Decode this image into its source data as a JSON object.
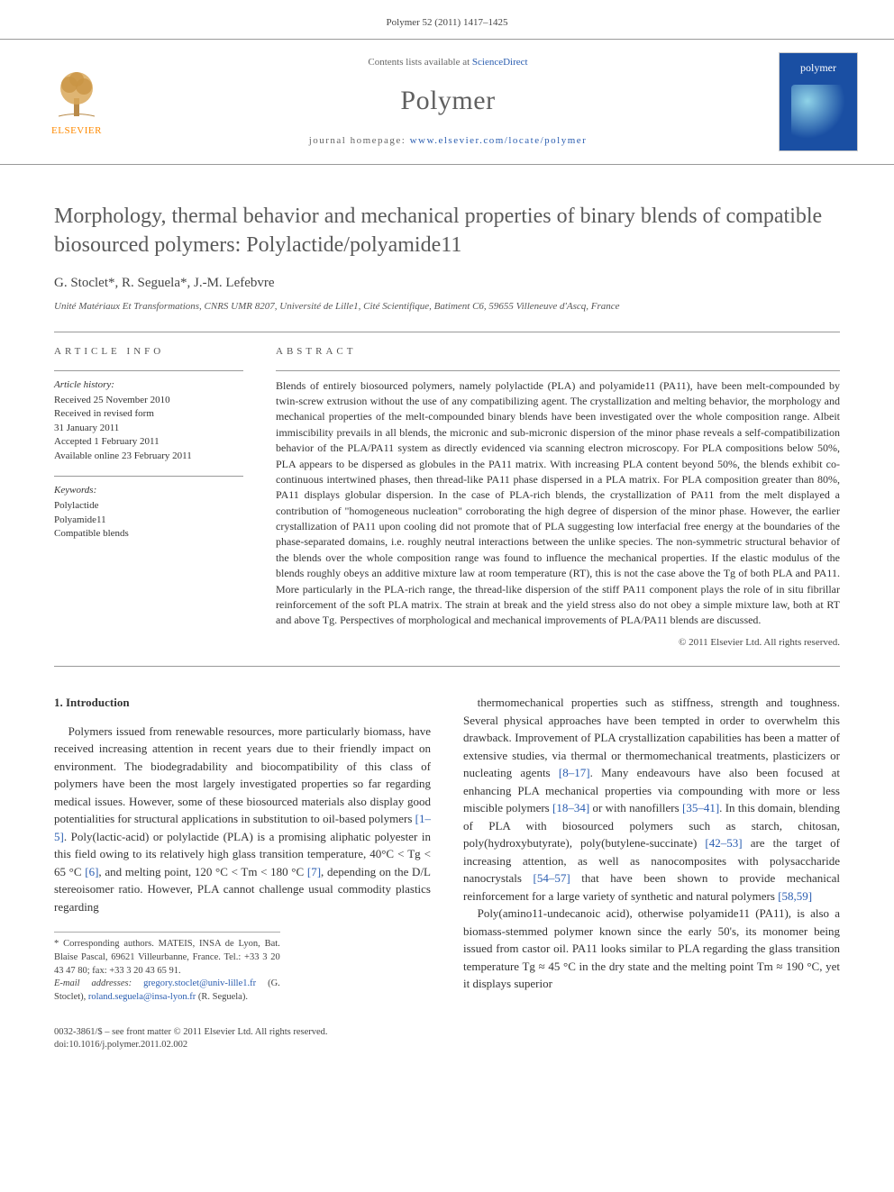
{
  "citation": "Polymer 52 (2011) 1417–1425",
  "masthead": {
    "publisher_label": "ELSEVIER",
    "contents_prefix": "Contents lists available at ",
    "contents_link": "ScienceDirect",
    "journal": "Polymer",
    "homepage_prefix": "journal homepage: ",
    "homepage_url": "www.elsevier.com/locate/polymer",
    "cover_title": "polymer"
  },
  "article": {
    "title": "Morphology, thermal behavior and mechanical properties of binary blends of compatible biosourced polymers: Polylactide/polyamide11",
    "authors": "G. Stoclet*, R. Seguela*, J.-M. Lefebvre",
    "affiliation": "Unité Matériaux Et Transformations, CNRS UMR 8207, Université de Lille1, Cité Scientifique, Batiment C6, 59655 Villeneuve d'Ascq, France"
  },
  "info": {
    "heading": "ARTICLE INFO",
    "history_label": "Article history:",
    "history_lines": "Received 25 November 2010\nReceived in revised form\n31 January 2011\nAccepted 1 February 2011\nAvailable online 23 February 2011",
    "keywords_label": "Keywords:",
    "keywords_lines": "Polylactide\nPolyamide11\nCompatible blends"
  },
  "abstract": {
    "heading": "ABSTRACT",
    "text": "Blends of entirely biosourced polymers, namely polylactide (PLA) and polyamide11 (PA11), have been melt-compounded by twin-screw extrusion without the use of any compatibilizing agent. The crystallization and melting behavior, the morphology and mechanical properties of the melt-compounded binary blends have been investigated over the whole composition range. Albeit immiscibility prevails in all blends, the micronic and sub-micronic dispersion of the minor phase reveals a self-compatibilization behavior of the PLA/PA11 system as directly evidenced via scanning electron microscopy. For PLA compositions below 50%, PLA appears to be dispersed as globules in the PA11 matrix. With increasing PLA content beyond 50%, the blends exhibit co-continuous intertwined phases, then thread-like PA11 phase dispersed in a PLA matrix. For PLA composition greater than 80%, PA11 displays globular dispersion. In the case of PLA-rich blends, the crystallization of PA11 from the melt displayed a contribution of \"homogeneous nucleation\" corroborating the high degree of dispersion of the minor phase. However, the earlier crystallization of PA11 upon cooling did not promote that of PLA suggesting low interfacial free energy at the boundaries of the phase-separated domains, i.e. roughly neutral interactions between the unlike species. The non-symmetric structural behavior of the blends over the whole composition range was found to influence the mechanical properties. If the elastic modulus of the blends roughly obeys an additive mixture law at room temperature (RT), this is not the case above the Tg of both PLA and PA11. More particularly in the PLA-rich range, the thread-like dispersion of the stiff PA11 component plays the role of in situ fibrillar reinforcement of the soft PLA matrix. The strain at break and the yield stress also do not obey a simple mixture law, both at RT and above Tg. Perspectives of morphological and mechanical improvements of PLA/PA11 blends are discussed.",
    "copyright": "© 2011 Elsevier Ltd. All rights reserved."
  },
  "body": {
    "sec1_heading": "1. Introduction",
    "col1_p1": "Polymers issued from renewable resources, more particularly biomass, have received increasing attention in recent years due to their friendly impact on environment. The biodegradability and biocompatibility of this class of polymers have been the most largely investigated properties so far regarding medical issues. However, some of these biosourced materials also display good potentialities for structural applications in substitution to oil-based polymers [1–5]. Poly(lactic-acid) or polylactide (PLA) is a promising aliphatic polyester in this field owing to its relatively high glass transition temperature, 40°C < Tg < 65 °C [6], and melting point, 120 °C < Tm < 180 °C [7], depending on the D/L stereoisomer ratio. However, PLA cannot challenge usual commodity plastics regarding",
    "col2_p1": "thermomechanical properties such as stiffness, strength and toughness. Several physical approaches have been tempted in order to overwhelm this drawback. Improvement of PLA crystallization capabilities has been a matter of extensive studies, via thermal or thermomechanical treatments, plasticizers or nucleating agents [8–17]. Many endeavours have also been focused at enhancing PLA mechanical properties via compounding with more or less miscible polymers [18–34] or with nanofillers [35–41]. In this domain, blending of PLA with biosourced polymers such as starch, chitosan, poly(hydroxybutyrate), poly(butylene-succinate) [42–53] are the target of increasing attention, as well as nanocomposites with polysaccharide nanocrystals [54–57] that have been shown to provide mechanical reinforcement for a large variety of synthetic and natural polymers [58,59]",
    "col2_p2": "Poly(amino11-undecanoic acid), otherwise polyamide11 (PA11), is also a biomass-stemmed polymer known since the early 50's, its monomer being issued from castor oil. PA11 looks similar to PLA regarding the glass transition temperature Tg ≈ 45 °C in the dry state and the melting point Tm ≈ 190 °C, yet it displays superior"
  },
  "footnotes": {
    "corr": "* Corresponding authors. MATEIS, INSA de Lyon, Bat. Blaise Pascal, 69621 Villeurbanne, France. Tel.: +33 3 20 43 47 80; fax: +33 3 20 43 65 91.",
    "email_label": "E-mail addresses: ",
    "email1": "gregory.stoclet@univ-lille1.fr",
    "email1_who": " (G. Stoclet), ",
    "email2": "roland.seguela@insa-lyon.fr",
    "email2_who": " (R. Seguela)."
  },
  "footer": {
    "line1": "0032-3861/$ – see front matter © 2011 Elsevier Ltd. All rights reserved.",
    "line2": "doi:10.1016/j.polymer.2011.02.002"
  },
  "colors": {
    "link": "#2a5db0",
    "elsevier_orange": "#ff8a00",
    "cover_blue": "#1a4fa3",
    "heading_gray": "#5a5a5a",
    "rule_gray": "#999999"
  }
}
